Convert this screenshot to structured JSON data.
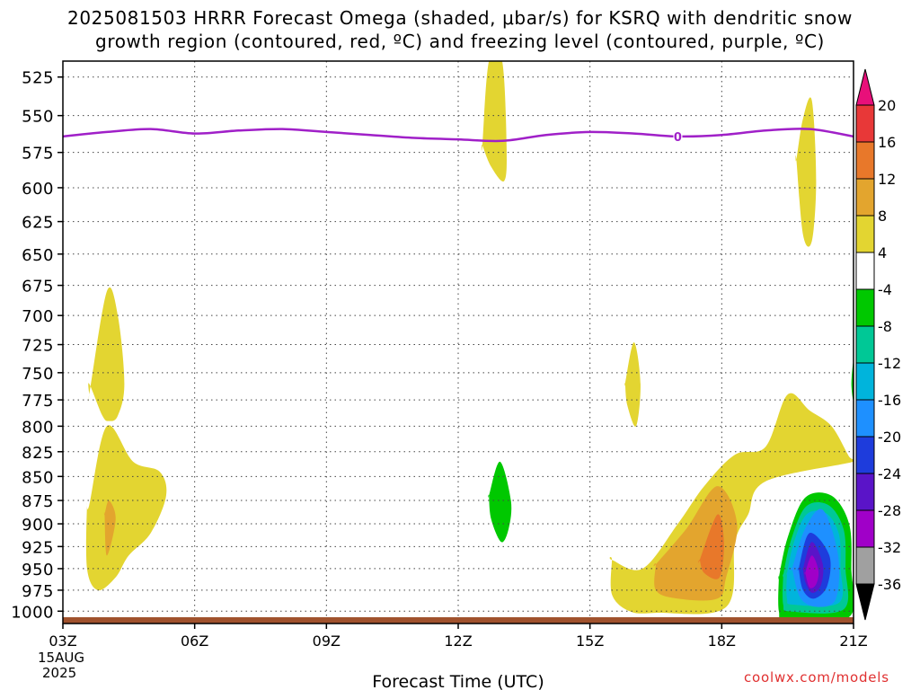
{
  "title_line1": "2025081503 HRRR Forecast Omega (shaded, μbar/s) for KSRQ with dendritic snow",
  "title_line2": "growth region (contoured, red, ºC) and freezing level (contoured, purple, ºC)",
  "watermark": "coolwx.com/models",
  "freezing_label": "0",
  "chart_data": {
    "type": "contour",
    "title": "2025081503 HRRR Forecast Omega (shaded, μbar/s) for KSRQ with dendritic snow growth region (contoured, red, ºC) and freezing level (contoured, purple, ºC)",
    "xlabel": "Forecast Time (UTC)",
    "ylabel": "",
    "x_ticks": [
      "03Z",
      "06Z",
      "09Z",
      "12Z",
      "15Z",
      "18Z",
      "21Z"
    ],
    "x_tick_hours": [
      3,
      6,
      9,
      12,
      15,
      18,
      21
    ],
    "x_date_line1": "15AUG",
    "x_date_line2": "2025",
    "xlim": [
      3,
      21
    ],
    "y_ticks": [
      525,
      550,
      575,
      600,
      625,
      650,
      675,
      700,
      725,
      750,
      775,
      800,
      825,
      850,
      875,
      900,
      925,
      950,
      975,
      1000
    ],
    "ylim": [
      1015,
      515
    ],
    "y_scale": "log",
    "grid": true,
    "colorbar_levels": [
      20,
      16,
      12,
      8,
      4,
      -4,
      -8,
      -12,
      -16,
      -20,
      -24,
      -28,
      -32,
      -36
    ],
    "colorbar_colors": [
      "#e8107a",
      "#e83838",
      "#e8782a",
      "#e3a52e",
      "#e3d531",
      "#ffffff",
      "#00c800",
      "#00c896",
      "#00b4dc",
      "#1e90ff",
      "#1e3cdc",
      "#5a14c8",
      "#a000c8",
      "#a0a0a0",
      "#000000"
    ],
    "freezing_level": {
      "color": "#a020c8",
      "label": "0",
      "hours": [
        3,
        4,
        5,
        6,
        7,
        8,
        9,
        10,
        11,
        12,
        13,
        14,
        15,
        16,
        17,
        18,
        19,
        20,
        21
      ],
      "pressure": [
        564,
        561,
        559,
        562,
        560,
        559,
        561,
        563,
        565,
        566,
        567,
        563,
        561,
        562,
        564,
        563,
        560,
        559,
        564
      ]
    },
    "shaded_regions": [
      {
        "range": "4 to 8",
        "hours": [
          3.6,
          4.0,
          4.25,
          4.4,
          4.25,
          4.05,
          3.9,
          3.6,
          3.6
        ],
        "pressure": [
          770,
          680,
          700,
          760,
          790,
          795,
          790,
          760,
          770
        ]
      },
      {
        "range": "4 to 8",
        "hours": [
          3.6,
          4.0,
          4.6,
          5.2,
          5.35,
          5.0,
          4.5,
          4.2,
          3.8,
          3.55,
          3.55
        ],
        "pressure": [
          880,
          800,
          835,
          845,
          870,
          910,
          935,
          960,
          975,
          950,
          880
        ]
      },
      {
        "range": "8 to 12",
        "hours": [
          3.95,
          4.05,
          4.2,
          4.0,
          3.95
        ],
        "pressure": [
          890,
          875,
          895,
          935,
          890
        ]
      },
      {
        "range": "4 to 8",
        "hours": [
          12.55,
          12.7,
          13.0,
          13.1,
          13.05,
          12.75,
          12.55
        ],
        "pressure": [
          570,
          515,
          515,
          570,
          595,
          585,
          570
        ]
      },
      {
        "range": "4 to 8",
        "hours": [
          19.7,
          19.85,
          20.05,
          20.15,
          20.05,
          19.85,
          19.7
        ],
        "pressure": [
          580,
          552,
          540,
          595,
          640,
          635,
          580
        ]
      },
      {
        "range": "4 to 8",
        "hours": [
          15.8,
          16.0,
          16.15,
          16.05,
          15.85,
          15.8
        ],
        "pressure": [
          760,
          723,
          760,
          800,
          780,
          760
        ]
      },
      {
        "range": "4 to 8",
        "hours": [
          15.5,
          16.2,
          17.0,
          17.6,
          18.3,
          19.0,
          19.5,
          20.0,
          20.5,
          20.9,
          21.0,
          19.0,
          18.6,
          18.3,
          18.1,
          16.5,
          15.9,
          15.5,
          15.5
        ],
        "pressure": [
          940,
          950,
          900,
          860,
          828,
          820,
          770,
          785,
          800,
          830,
          835,
          855,
          890,
          920,
          995,
          1002,
          1000,
          980,
          940
        ]
      },
      {
        "range": "8 to 12",
        "hours": [
          16.5,
          17.2,
          17.9,
          18.35,
          18.1,
          17.9,
          17.0,
          16.5,
          16.5
        ],
        "pressure": [
          945,
          905,
          860,
          900,
          960,
          985,
          985,
          975,
          945
        ]
      },
      {
        "range": "12 to 16",
        "hours": [
          17.5,
          17.9,
          18.05,
          17.95,
          17.6,
          17.5
        ],
        "pressure": [
          940,
          890,
          920,
          960,
          955,
          940
        ]
      },
      {
        "range": "-4 to -8",
        "hours": [
          12.7,
          12.95,
          13.2,
          13.15,
          12.98,
          12.75,
          12.7
        ],
        "pressure": [
          870,
          835,
          875,
          905,
          920,
          895,
          870
        ]
      },
      {
        "range": "-4 to -8",
        "hours": [
          21.0,
          20.95,
          21.0
        ],
        "pressure": [
          740,
          760,
          775
        ]
      },
      {
        "range": "-4 to -8",
        "hours": [
          19.3,
          19.5,
          19.9,
          20.5,
          20.9,
          20.95,
          20.9,
          19.5,
          19.3,
          19.3
        ],
        "pressure": [
          960,
          915,
          872,
          870,
          900,
          950,
          1007,
          1010,
          1000,
          960
        ]
      },
      {
        "range": "-16 to -32",
        "hours": [
          19.6,
          19.9,
          20.3,
          20.65,
          20.6,
          20.2,
          19.8,
          19.6
        ],
        "pressure": [
          950,
          905,
          885,
          935,
          985,
          995,
          985,
          950
        ]
      },
      {
        "range": "-20 to -24",
        "hours": [
          19.75,
          20.0,
          20.45,
          20.4,
          20.1,
          19.85,
          19.75
        ],
        "pressure": [
          950,
          910,
          935,
          970,
          985,
          975,
          950
        ]
      },
      {
        "range": "-24 to -28",
        "hours": [
          19.85,
          20.05,
          20.3,
          20.25,
          20.05,
          19.9,
          19.85
        ],
        "pressure": [
          950,
          920,
          945,
          970,
          978,
          965,
          950
        ]
      },
      {
        "range": "-28 to -32",
        "hours": [
          19.9,
          20.05,
          20.2,
          20.15,
          20.0,
          19.9
        ],
        "pressure": [
          955,
          935,
          952,
          968,
          972,
          955
        ]
      }
    ]
  }
}
